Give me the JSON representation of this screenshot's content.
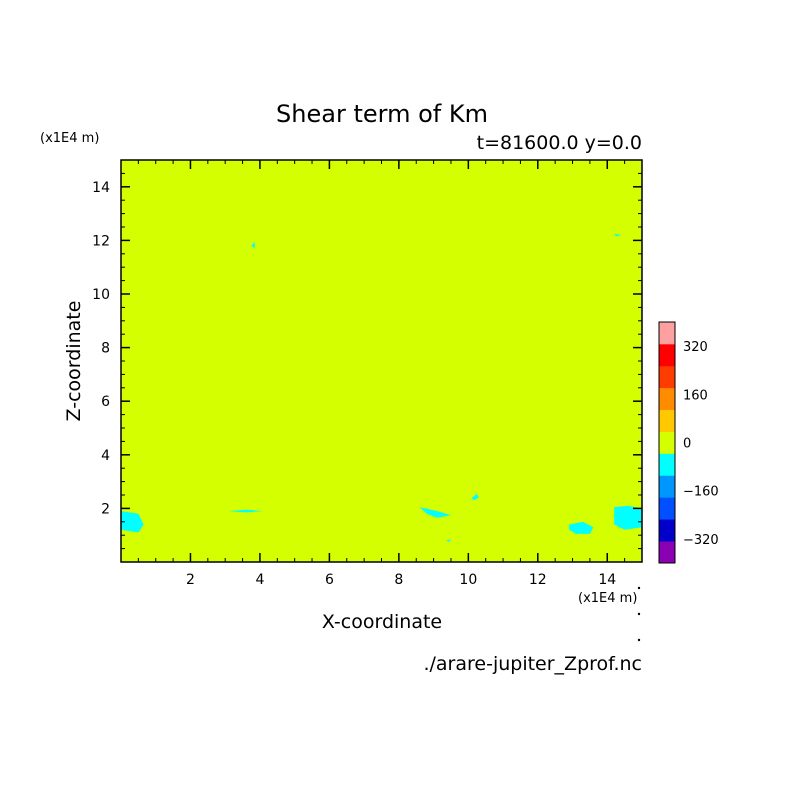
{
  "chart_data": {
    "type": "heatmap",
    "title": "Shear term of Km",
    "subtitle": "t=81600.0 y=0.0",
    "xlabel": "X-coordinate",
    "ylabel": "Z-coordinate",
    "x_unit": "(x1E4 m)",
    "y_unit": "(x1E4 m)",
    "xlim": [
      0,
      15
    ],
    "ylim": [
      0,
      15
    ],
    "xticks": [
      2,
      4,
      6,
      8,
      10,
      12,
      14
    ],
    "xtick_labels": [
      "2",
      "4",
      "6",
      "8",
      "10",
      "12",
      "14"
    ],
    "yticks": [
      2,
      4,
      6,
      8,
      10,
      12,
      14
    ],
    "ytick_labels": [
      "2",
      "4",
      "6",
      "8",
      "10",
      "12",
      "14"
    ],
    "background_value_color": "#d4ff00",
    "regions": [
      {
        "value_color": "#00ffff",
        "points": [
          [
            0,
            1.9
          ],
          [
            0.5,
            1.8
          ],
          [
            0.65,
            1.4
          ],
          [
            0.5,
            1.1
          ],
          [
            0,
            1.2
          ]
        ]
      },
      {
        "value_color": "#00ffff",
        "points": [
          [
            3.1,
            1.9
          ],
          [
            3.6,
            1.95
          ],
          [
            4.1,
            1.9
          ],
          [
            3.6,
            1.85
          ]
        ]
      },
      {
        "value_color": "#00ffff",
        "points": [
          [
            8.6,
            2.05
          ],
          [
            9.1,
            1.9
          ],
          [
            9.5,
            1.75
          ],
          [
            9.1,
            1.65
          ],
          [
            8.8,
            1.8
          ]
        ]
      },
      {
        "value_color": "#00ffff",
        "points": [
          [
            10.1,
            2.4
          ],
          [
            10.25,
            2.55
          ],
          [
            10.3,
            2.4
          ],
          [
            10.15,
            2.3
          ]
        ]
      },
      {
        "value_color": "#00ffff",
        "points": [
          [
            12.9,
            1.4
          ],
          [
            13.3,
            1.5
          ],
          [
            13.6,
            1.3
          ],
          [
            13.5,
            1.05
          ],
          [
            13.1,
            1.05
          ],
          [
            12.9,
            1.2
          ]
        ]
      },
      {
        "value_color": "#00ffff",
        "points": [
          [
            14.2,
            2.05
          ],
          [
            14.6,
            2.1
          ],
          [
            15,
            2.0
          ],
          [
            15,
            1.3
          ],
          [
            14.5,
            1.2
          ],
          [
            14.2,
            1.4
          ]
        ]
      },
      {
        "value_color": "#00ffff",
        "points": [
          [
            3.75,
            11.8
          ],
          [
            3.85,
            11.95
          ],
          [
            3.85,
            11.7
          ]
        ]
      },
      {
        "value_color": "#00ffff",
        "points": [
          [
            14.2,
            12.25
          ],
          [
            14.4,
            12.2
          ],
          [
            14.25,
            12.15
          ]
        ]
      },
      {
        "value_color": "#00ffff",
        "points": [
          [
            9.35,
            0.8
          ],
          [
            9.5,
            0.85
          ],
          [
            9.45,
            0.75
          ]
        ]
      }
    ],
    "colorbar": {
      "levels": [
        -400,
        -320,
        -240,
        -160,
        -80,
        0,
        80,
        160,
        240,
        320,
        400
      ],
      "colors": [
        "#8c00b4",
        "#0000c8",
        "#0050ff",
        "#0096ff",
        "#00ffff",
        "#d4ff00",
        "#ffc800",
        "#ff8c00",
        "#ff3c00",
        "#ff0000",
        "#ffa0a0"
      ],
      "labeled": [
        -320,
        -160,
        0,
        160,
        320
      ],
      "labels": [
        "−320",
        "−160",
        "0",
        "160",
        "320"
      ]
    },
    "grid": false,
    "legend": "colorbar-right"
  },
  "footer": {
    "filename": "./arare-jupiter_Zprof.nc"
  }
}
